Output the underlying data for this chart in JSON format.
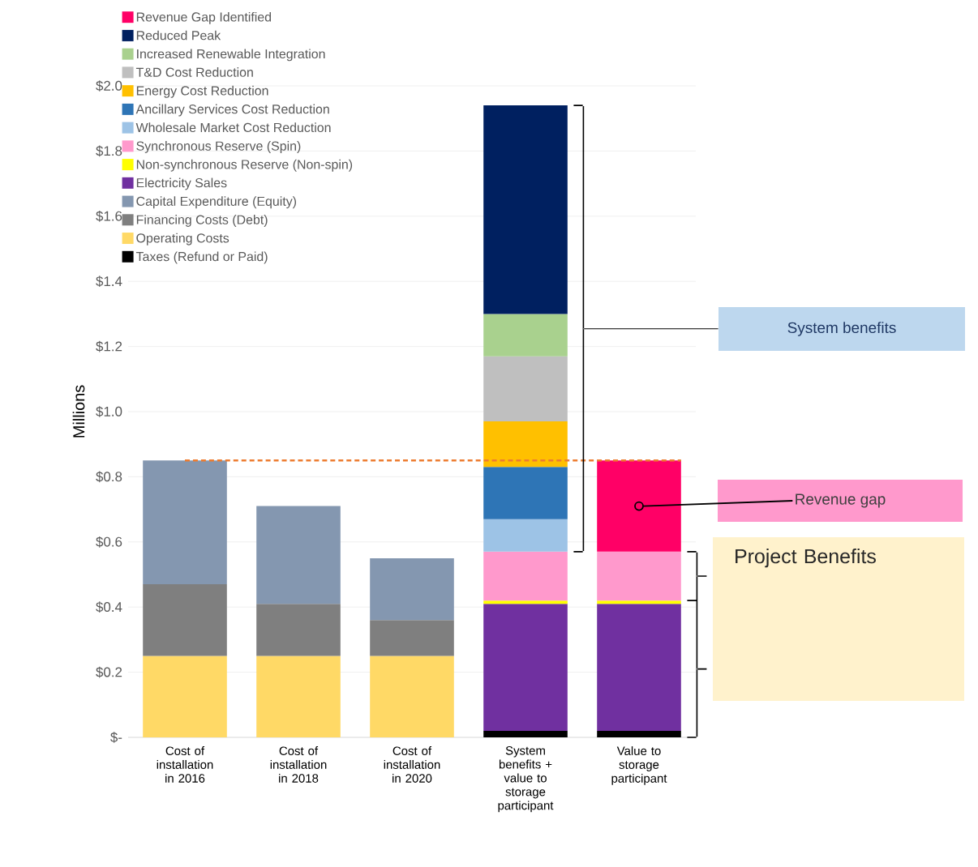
{
  "chart_data": {
    "type": "bar",
    "stacked": true,
    "ylabel": "Millions",
    "categories": [
      "Cost of installation in 2016",
      "Cost of installation in 2018",
      "Cost of installation in 2020",
      "System benefits + value to storage participant",
      "Value to storage participant"
    ],
    "series": [
      {
        "name": "Taxes (Refund or Paid)",
        "color": "#000000",
        "values": [
          null,
          null,
          null,
          0.02,
          0.02
        ]
      },
      {
        "name": "Operating Costs",
        "color": "#ffd966",
        "values": [
          0.25,
          0.25,
          0.25,
          null,
          null
        ]
      },
      {
        "name": "Financing Costs (Debt)",
        "color": "#7f7f7f",
        "values": [
          0.22,
          0.16,
          0.11,
          null,
          null
        ]
      },
      {
        "name": "Capital Expenditure (Equity)",
        "color": "#8497b0",
        "values": [
          0.38,
          0.3,
          0.19,
          null,
          null
        ]
      },
      {
        "name": "Electricity Sales",
        "color": "#7030a0",
        "values": [
          null,
          null,
          null,
          0.39,
          0.39
        ]
      },
      {
        "name": "Non-synchronous Reserve (Non-spin)",
        "color": "#ffff00",
        "values": [
          null,
          null,
          null,
          0.01,
          0.01
        ]
      },
      {
        "name": "Synchronous Reserve (Spin)",
        "color": "#ff99cc",
        "values": [
          null,
          null,
          null,
          0.15,
          0.15
        ]
      },
      {
        "name": "Wholesale Market Cost Reduction",
        "color": "#9dc3e6",
        "values": [
          null,
          null,
          null,
          0.1,
          null
        ]
      },
      {
        "name": "Ancillary Services Cost Reduction",
        "color": "#2e75b6",
        "values": [
          null,
          null,
          null,
          0.16,
          null
        ]
      },
      {
        "name": "Energy Cost Reduction",
        "color": "#ffc000",
        "values": [
          null,
          null,
          null,
          0.14,
          null
        ]
      },
      {
        "name": "T&D Cost Reduction",
        "color": "#bfbfbf",
        "values": [
          null,
          null,
          null,
          0.2,
          null
        ]
      },
      {
        "name": "Increased Renewable Integration",
        "color": "#a9d18e",
        "values": [
          null,
          null,
          null,
          0.13,
          null
        ]
      },
      {
        "name": "Reduced Peak",
        "color": "#002060",
        "values": [
          null,
          null,
          null,
          0.64,
          null
        ]
      },
      {
        "name": "Revenue Gap Identified",
        "color": "#ff0066",
        "values": [
          null,
          null,
          null,
          null,
          0.28
        ]
      }
    ],
    "ylim": [
      0,
      2.0
    ],
    "yticks": [
      {
        "value": 0,
        "label": "$-"
      },
      {
        "value": 0.2,
        "label": "$0.2"
      },
      {
        "value": 0.4,
        "label": "$0.4"
      },
      {
        "value": 0.6,
        "label": "$0.6"
      },
      {
        "value": 0.8,
        "label": "$0.8"
      },
      {
        "value": 1.0,
        "label": "$1.0"
      },
      {
        "value": 1.2,
        "label": "$1.2"
      },
      {
        "value": 1.4,
        "label": "$1.4"
      },
      {
        "value": 1.6,
        "label": "$1.6"
      },
      {
        "value": 1.8,
        "label": "$1.8"
      },
      {
        "value": 2.0,
        "label": "$2.0"
      }
    ],
    "ref_lines": [
      {
        "axis": "y",
        "value": 0.85,
        "color": "#ed7d31",
        "line_style": "dashed"
      }
    ],
    "annotations": [
      "System benefits",
      {
        "text": "Revenue gap",
        "x": "Value to storage participant",
        "y": 0.71
      },
      "Project Benefits"
    ],
    "grid": "y",
    "legend": "top left"
  }
}
